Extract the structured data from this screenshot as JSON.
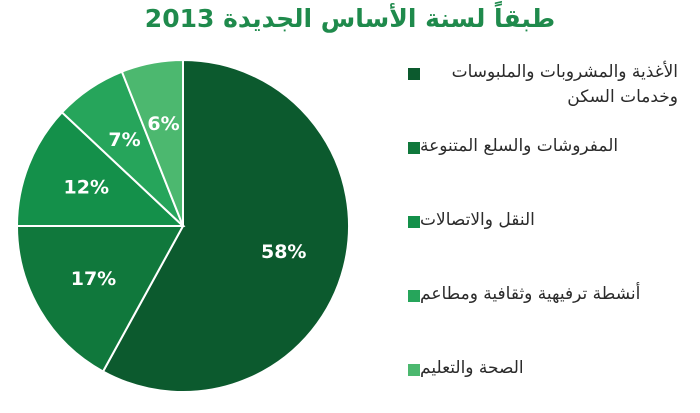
{
  "chart_data": {
    "type": "pie",
    "title": "طبقاً لسنة الأساس الجديدة 2013",
    "slices": [
      {
        "label": "الأغذية والمشروبات والملبوسات وخدمات السكن",
        "value": 58,
        "display": "58%",
        "color": "#0c5a2e"
      },
      {
        "label": "المفروشات والسلع المتنوعة",
        "value": 17,
        "display": "17%",
        "color": "#10783c"
      },
      {
        "label": "النقل والاتصالات",
        "value": 12,
        "display": "12%",
        "color": "#14904a"
      },
      {
        "label": "أنشطة ترفيهية وثقافية ومطاعم",
        "value": 7,
        "display": "7%",
        "color": "#26a55b"
      },
      {
        "label": "الصحة والتعليم",
        "value": 6,
        "display": "6%",
        "color": "#4cb86f"
      }
    ],
    "legend_position": "right"
  },
  "colors": {
    "title": "#1f8a4c",
    "legend_text": "#2b2b2b"
  }
}
